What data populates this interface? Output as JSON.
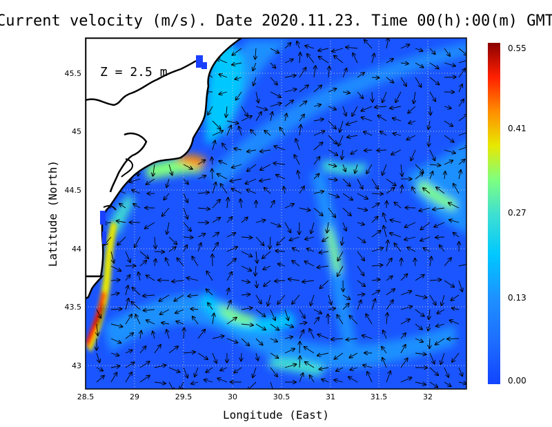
{
  "title": "Current velocity (m/s). Date 2020.11.23. Time 00(h):00(m) GMT",
  "depth_label": "Z = 2.5 m",
  "xlabel": "Longitude (East)",
  "ylabel": "Latitude (North)",
  "x_ticks": [
    "28.5",
    "29",
    "29.5",
    "30",
    "30.5",
    "31",
    "31.5",
    "32"
  ],
  "y_ticks": [
    "43",
    "43.5",
    "44",
    "44.5",
    "45",
    "45.5"
  ],
  "colorbar": {
    "tick_labels": [
      "0.55",
      "0.41",
      "0.27",
      "0.13",
      "0.00"
    ],
    "min": 0.0,
    "max": 0.55,
    "colors": [
      "#1144ff",
      "#1e90ff",
      "#00ccff",
      "#40e0d0",
      "#7fff7f",
      "#e8e800",
      "#ff8c00",
      "#ff2000",
      "#8b0000"
    ]
  },
  "chart_data": {
    "type": "heatmap",
    "title": "Current velocity (m/s). Date 2020.11.23. Time 00(h):00(m) GMT",
    "xlabel": "Longitude (East)",
    "ylabel": "Latitude (North)",
    "xlim": [
      28.5,
      32.4
    ],
    "ylim": [
      42.8,
      45.8
    ],
    "grid": true,
    "value_range": [
      0.0,
      0.55
    ],
    "overlay": "velocity vectors (arrows)",
    "coastline": "black"
  }
}
